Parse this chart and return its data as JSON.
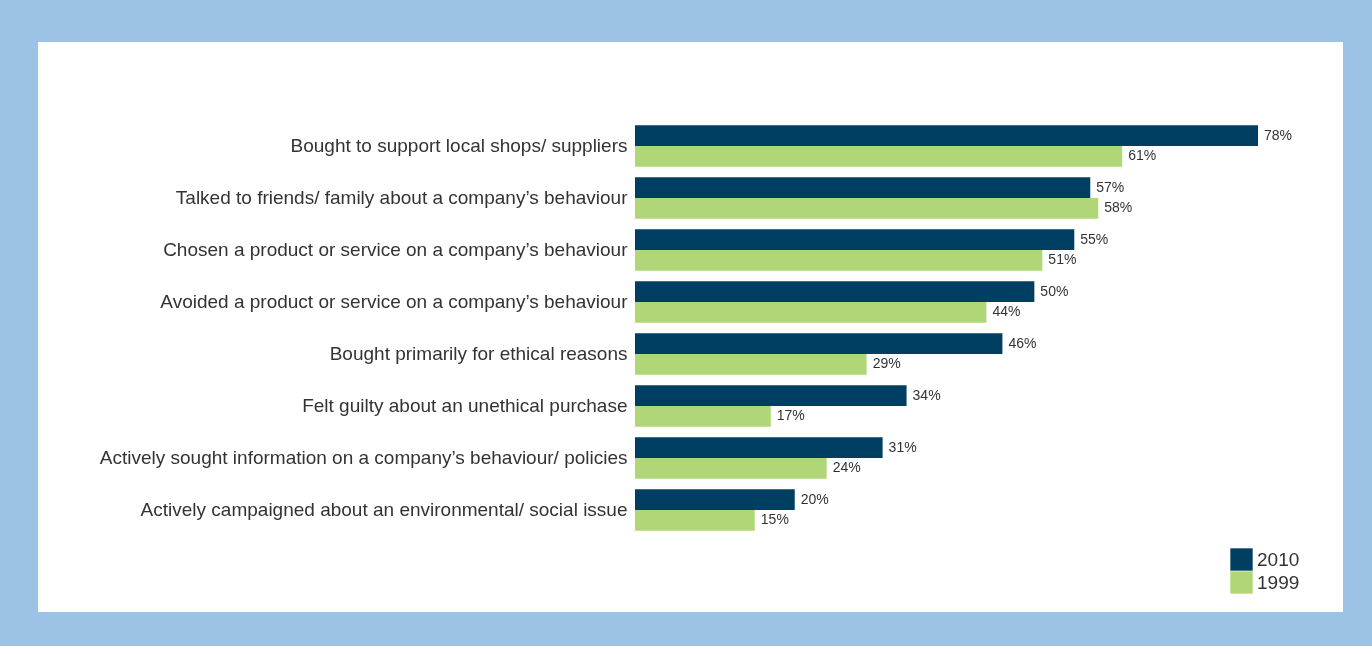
{
  "chart_data": {
    "type": "bar",
    "orientation": "horizontal",
    "categories": [
      "Bought to support local shops/ suppliers",
      "Talked to friends/ family about a company’s behaviour",
      "Chosen a product or service on a company’s behaviour",
      "Avoided a product or service on a company’s behaviour",
      "Bought primarily for ethical reasons",
      "Felt guilty about an unethical purchase",
      "Actively sought information on a company’s behaviour/ policies",
      "Actively campaigned about an environmental/ social issue"
    ],
    "series": [
      {
        "name": "2010",
        "color": "#003f62",
        "values": [
          78,
          57,
          55,
          50,
          46,
          34,
          31,
          20
        ],
        "value_labels": [
          "78%",
          "57%",
          "55%",
          "50%",
          "46%",
          "34%",
          "31%",
          "20%"
        ]
      },
      {
        "name": "1999",
        "color": "#b1d677",
        "values": [
          61,
          58,
          51,
          44,
          29,
          17,
          24,
          15
        ],
        "value_labels": [
          "61%",
          "58%",
          "51%",
          "44%",
          "29%",
          "17%",
          "24%",
          "15%"
        ]
      }
    ],
    "legend": "bottom right",
    "tick_labels": "y"
  }
}
